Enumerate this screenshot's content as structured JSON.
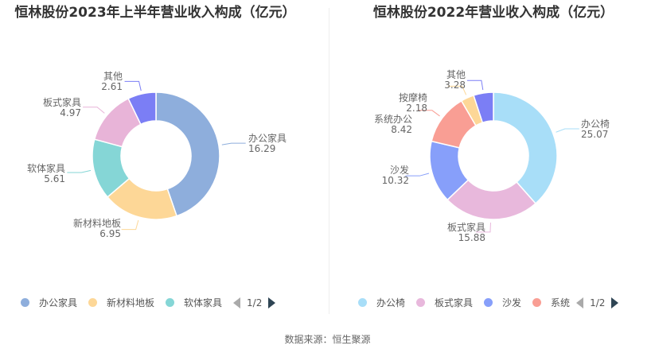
{
  "chart_data": [
    {
      "type": "pie",
      "title": "恒林股份2023年上半年营业收入构成（亿元）",
      "categories": [
        "办公家具",
        "新材料地板",
        "软体家具",
        "板式家具",
        "其他"
      ],
      "values": [
        16.29,
        6.95,
        5.61,
        4.97,
        2.61
      ],
      "colors": [
        "#8eaedc",
        "#fdd797",
        "#85d6d6",
        "#e8b4d8",
        "#7b7ef5"
      ],
      "legend": {
        "page": "1/2",
        "visible": [
          "办公家具",
          "新材料地板",
          "软体家具"
        ]
      }
    },
    {
      "type": "pie",
      "title": "恒林股份2022年营业收入构成（亿元）",
      "categories": [
        "办公椅",
        "板式家具",
        "沙发",
        "系统办公",
        "按摩椅",
        "其他"
      ],
      "values": [
        25.07,
        15.88,
        10.32,
        8.42,
        2.18,
        3.28
      ],
      "colors": [
        "#a8def8",
        "#e8b8dc",
        "#879ffa",
        "#f99e94",
        "#fdd797",
        "#7b7ef5"
      ],
      "legend": {
        "page": "1/2",
        "visible": [
          "办公椅",
          "板式家具",
          "沙发",
          "系统"
        ]
      }
    }
  ],
  "source": "数据来源：恒生聚源"
}
